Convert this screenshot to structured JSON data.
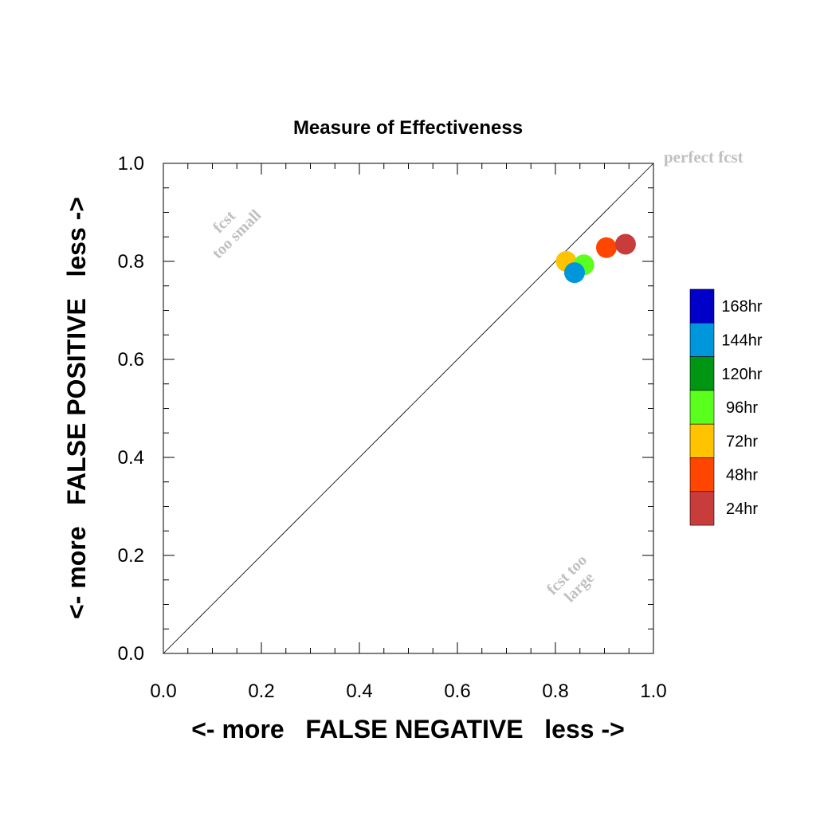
{
  "chart_data": {
    "type": "scatter",
    "title": "Measure of Effectiveness",
    "xlabel": "<- more   FALSE NEGATIVE   less ->",
    "ylabel": "<- more   FALSE POSITIVE   less ->",
    "xlim": [
      0.0,
      1.0
    ],
    "ylim": [
      0.0,
      1.0
    ],
    "x_ticks": [
      "0.0",
      "0.2",
      "0.4",
      "0.6",
      "0.8",
      "1.0"
    ],
    "y_ticks": [
      "0.0",
      "0.2",
      "0.4",
      "0.6",
      "0.8",
      "1.0"
    ],
    "grid": false,
    "diagonal": true,
    "annotations": {
      "perfect": "perfect fcst",
      "too_small_line1": "fcst",
      "too_small_line2": "too small",
      "too_large_line1": "fcst too",
      "too_large_line2": "large"
    },
    "legend": {
      "placement": "right",
      "items": [
        {
          "label": "168hr",
          "color": "#0000c8"
        },
        {
          "label": "144hr",
          "color": "#0096dc"
        },
        {
          "label": "120hr",
          "color": "#009614"
        },
        {
          "label": "96hr",
          "color": "#5aff1e"
        },
        {
          "label": "72hr",
          "color": "#ffc300"
        },
        {
          "label": "48hr",
          "color": "#ff4600"
        },
        {
          "label": "24hr",
          "color": "#c83c3c"
        }
      ]
    },
    "series": [
      {
        "lead": "72hr",
        "color": "#ffc300",
        "x": 0.822,
        "y": 0.8
      },
      {
        "lead": "96hr",
        "color": "#5aff1e",
        "x": 0.858,
        "y": 0.793
      },
      {
        "lead": "144hr",
        "color": "#0096dc",
        "x": 0.839,
        "y": 0.777
      },
      {
        "lead": "48hr",
        "color": "#ff4600",
        "x": 0.904,
        "y": 0.828
      },
      {
        "lead": "24hr",
        "color": "#c83c3c",
        "x": 0.943,
        "y": 0.835
      }
    ]
  }
}
